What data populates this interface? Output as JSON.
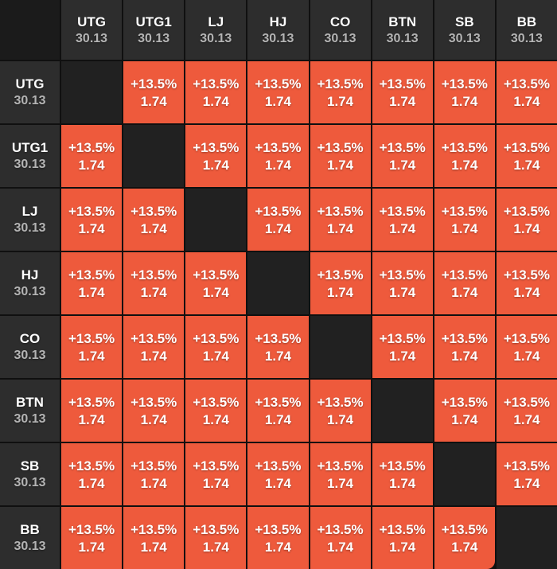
{
  "matrix": {
    "positions": [
      {
        "label": "UTG",
        "stack": "30.13"
      },
      {
        "label": "UTG1",
        "stack": "30.13"
      },
      {
        "label": "LJ",
        "stack": "30.13"
      },
      {
        "label": "HJ",
        "stack": "30.13"
      },
      {
        "label": "CO",
        "stack": "30.13"
      },
      {
        "label": "BTN",
        "stack": "30.13"
      },
      {
        "label": "SB",
        "stack": "30.13"
      },
      {
        "label": "BB",
        "stack": "30.13"
      }
    ],
    "cell": {
      "ev_percent": "+13.5%",
      "multiplier": "1.74"
    },
    "diagonal_cells_empty": true
  },
  "colors": {
    "cell_bg": "#ee5a3c",
    "header_bg": "#2d2d2d",
    "corner_bg": "#1b1b1b",
    "diagonal_bg": "#212121",
    "grid_line": "#101010",
    "position_text": "#ffffff",
    "stack_text": "#b4b4b4",
    "cell_text": "#ffffff"
  }
}
